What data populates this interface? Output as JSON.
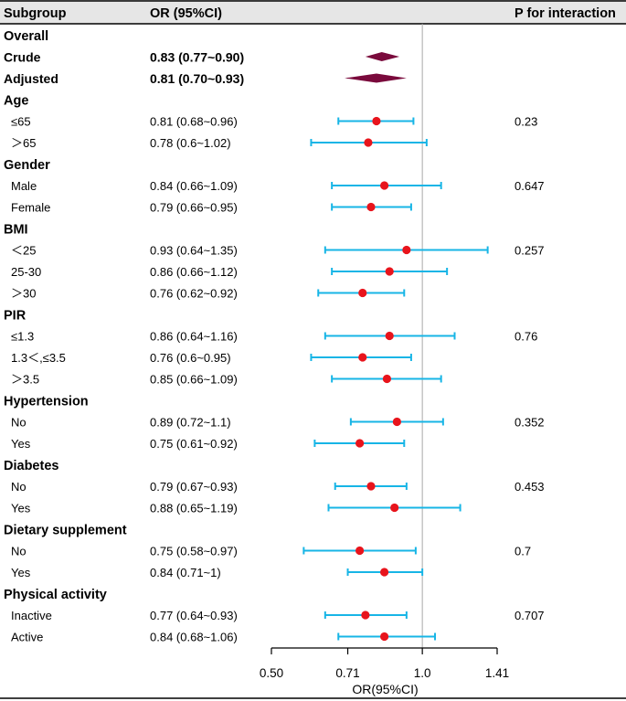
{
  "headers": {
    "subgroup": "Subgroup",
    "or": "OR (95%CI)",
    "p": "P for interaction"
  },
  "colors": {
    "ci_line": "#17b5e6",
    "point": "#e8141c",
    "diamond": "#7a0a3c",
    "ref_line": "#aaaaaa",
    "header_bg": "#e6e6e6",
    "axis": "#000000"
  },
  "chart_data": {
    "type": "forest",
    "title": "",
    "xlabel": "OR(95%CI)",
    "ylabel": "",
    "x_scale": "log",
    "xlim": [
      0.5,
      1.41
    ],
    "xticks": [
      0.5,
      0.71,
      1.0,
      1.41
    ],
    "xtick_labels": [
      "0.50",
      "0.71",
      "1.0",
      "1.41"
    ],
    "reference_value": 1.0,
    "rows": [
      {
        "kind": "group",
        "label": "Overall"
      },
      {
        "kind": "summary",
        "label": "Crude",
        "or_text": "0.83 (0.77~0.90)",
        "or": 0.83,
        "lo": 0.77,
        "hi": 0.9
      },
      {
        "kind": "summary",
        "label": "Adjusted",
        "or_text": "0.81 (0.70~0.93)",
        "or": 0.81,
        "lo": 0.7,
        "hi": 0.93
      },
      {
        "kind": "group",
        "label": "Age"
      },
      {
        "kind": "item",
        "label": "≤65",
        "or_text": "0.81 (0.68~0.96)",
        "or": 0.81,
        "lo": 0.68,
        "hi": 0.96,
        "p": "0.23"
      },
      {
        "kind": "item",
        "label": "＞65",
        "or_text": "0.78 (0.6~1.02)",
        "or": 0.78,
        "lo": 0.6,
        "hi": 1.02
      },
      {
        "kind": "group",
        "label": "Gender"
      },
      {
        "kind": "item",
        "label": "Male",
        "or_text": "0.84 (0.66~1.09)",
        "or": 0.84,
        "lo": 0.66,
        "hi": 1.09,
        "p": "0.647"
      },
      {
        "kind": "item",
        "label": "Female",
        "or_text": "0.79 (0.66~0.95)",
        "or": 0.79,
        "lo": 0.66,
        "hi": 0.95
      },
      {
        "kind": "group",
        "label": "BMI"
      },
      {
        "kind": "item",
        "label": "＜25",
        "or_text": "0.93 (0.64~1.35)",
        "or": 0.93,
        "lo": 0.64,
        "hi": 1.35,
        "p": "0.257"
      },
      {
        "kind": "item",
        "label": "25-30",
        "or_text": "0.86 (0.66~1.12)",
        "or": 0.86,
        "lo": 0.66,
        "hi": 1.12
      },
      {
        "kind": "item",
        "label": "＞30",
        "or_text": "0.76 (0.62~0.92)",
        "or": 0.76,
        "lo": 0.62,
        "hi": 0.92
      },
      {
        "kind": "group",
        "label": "PIR"
      },
      {
        "kind": "item",
        "label": "≤1.3",
        "or_text": "0.86 (0.64~1.16)",
        "or": 0.86,
        "lo": 0.64,
        "hi": 1.16,
        "p": "0.76"
      },
      {
        "kind": "item",
        "label": "1.3＜,≤3.5",
        "or_text": "0.76 (0.6~0.95)",
        "or": 0.76,
        "lo": 0.6,
        "hi": 0.95
      },
      {
        "kind": "item",
        "label": "＞3.5",
        "or_text": "0.85 (0.66~1.09)",
        "or": 0.85,
        "lo": 0.66,
        "hi": 1.09
      },
      {
        "kind": "group",
        "label": "Hypertension"
      },
      {
        "kind": "item",
        "label": "No",
        "or_text": "0.89 (0.72~1.1)",
        "or": 0.89,
        "lo": 0.72,
        "hi": 1.1,
        "p": "0.352"
      },
      {
        "kind": "item",
        "label": "Yes",
        "or_text": "0.75 (0.61~0.92)",
        "or": 0.75,
        "lo": 0.61,
        "hi": 0.92
      },
      {
        "kind": "group",
        "label": "Diabetes"
      },
      {
        "kind": "item",
        "label": "No",
        "or_text": "0.79 (0.67~0.93)",
        "or": 0.79,
        "lo": 0.67,
        "hi": 0.93,
        "p": "0.453"
      },
      {
        "kind": "item",
        "label": "Yes",
        "or_text": "0.88 (0.65~1.19)",
        "or": 0.88,
        "lo": 0.65,
        "hi": 1.19
      },
      {
        "kind": "group",
        "label": "Dietary supplement"
      },
      {
        "kind": "item",
        "label": "No",
        "or_text": "0.75 (0.58~0.97)",
        "or": 0.75,
        "lo": 0.58,
        "hi": 0.97,
        "p": "0.7"
      },
      {
        "kind": "item",
        "label": "Yes",
        "or_text": "0.84 (0.71~1)",
        "or": 0.84,
        "lo": 0.71,
        "hi": 1.0
      },
      {
        "kind": "group",
        "label": "Physical activity"
      },
      {
        "kind": "item",
        "label": "Inactive",
        "or_text": "0.77 (0.64~0.93)",
        "or": 0.77,
        "lo": 0.64,
        "hi": 0.93,
        "p": "0.707"
      },
      {
        "kind": "item",
        "label": "Active",
        "or_text": "0.84 (0.68~1.06)",
        "or": 0.84,
        "lo": 0.68,
        "hi": 1.06
      }
    ]
  }
}
